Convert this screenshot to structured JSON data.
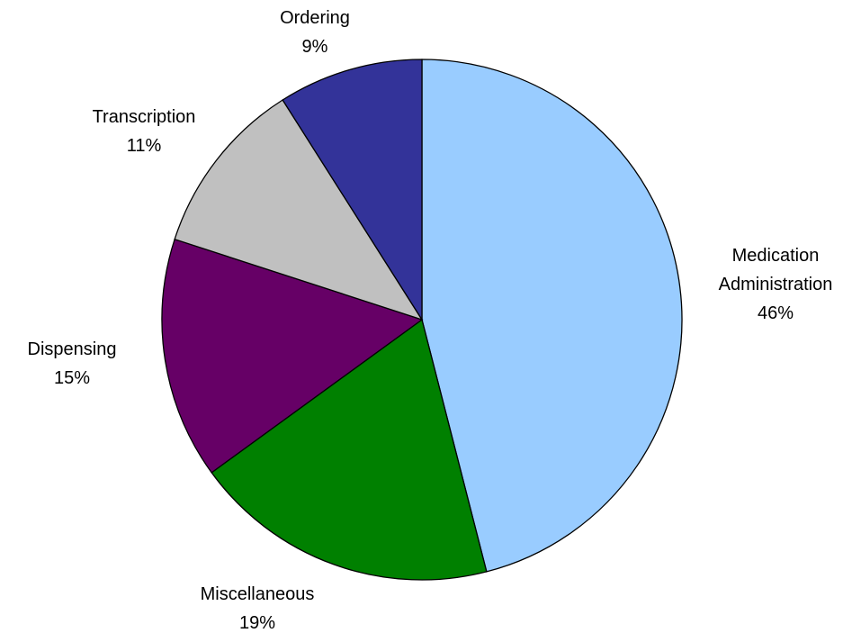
{
  "chart_data": {
    "type": "pie",
    "categories": [
      "Medication Administration",
      "Miscellaneous",
      "Dispensing",
      "Transcription",
      "Ordering"
    ],
    "values": [
      46,
      19,
      15,
      11,
      9
    ],
    "value_labels": [
      "46%",
      "19%",
      "15%",
      "11%",
      "9%"
    ],
    "colors": [
      "#99ccff",
      "#008000",
      "#660066",
      "#c0c0c0",
      "#333399"
    ]
  }
}
